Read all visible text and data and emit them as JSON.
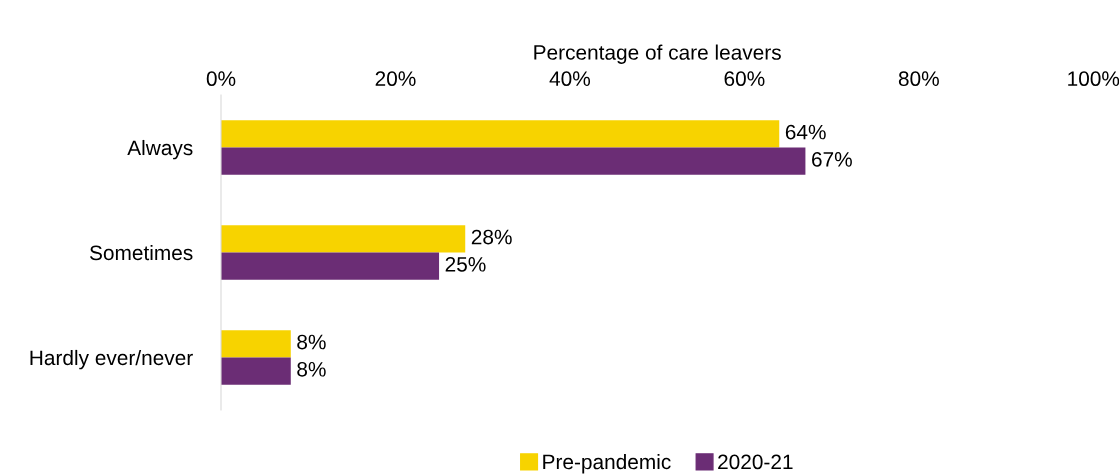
{
  "chart_data": {
    "type": "bar",
    "orientation": "horizontal",
    "xlabel": "Percentage of care leavers",
    "categories": [
      "Always",
      "Sometimes",
      "Hardly ever/never"
    ],
    "series": [
      {
        "name": "Pre-pandemic",
        "color": "#f7d300",
        "values": [
          64,
          28,
          8
        ],
        "value_labels": [
          "64%",
          "28%",
          "8%"
        ]
      },
      {
        "name": "2020-21",
        "color": "#6b2d75",
        "values": [
          67,
          25,
          8
        ],
        "value_labels": [
          "67%",
          "25%",
          "8%"
        ]
      }
    ],
    "xlim": [
      0,
      100
    ],
    "xticks": [
      {
        "value": 0,
        "label": "0%"
      },
      {
        "value": 20,
        "label": "20%"
      },
      {
        "value": 40,
        "label": "40%"
      },
      {
        "value": 60,
        "label": "60%"
      },
      {
        "value": 80,
        "label": "80%"
      },
      {
        "value": 100,
        "label": "100%"
      }
    ],
    "legend": "bottom",
    "grid": false
  }
}
